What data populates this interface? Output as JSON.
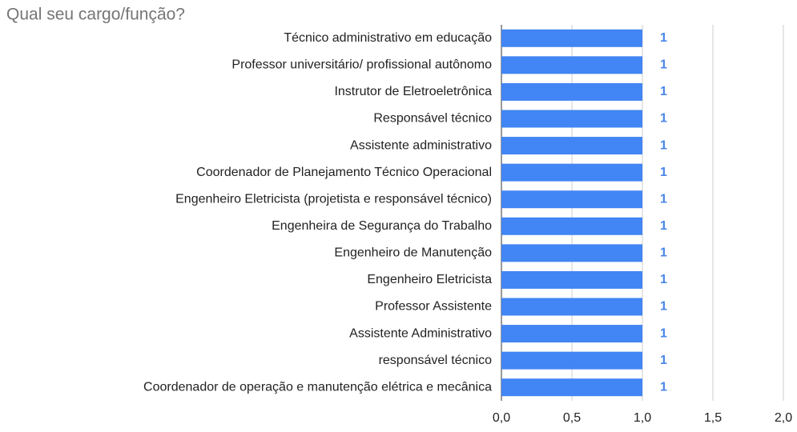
{
  "chart_data": {
    "type": "bar",
    "orientation": "horizontal",
    "title": "Qual seu cargo/função?",
    "categories": [
      "Técnico administrativo em educação",
      "Professor universitário/ profissional autônomo",
      "Instrutor de Eletroeletrônica",
      "Responsável técnico",
      "Assistente administrativo",
      "Coordenador de Planejamento Técnico Operacional",
      "Engenheiro Eletricista (projetista e responsável técnico)",
      "Engenheira de Segurança do Trabalho",
      "Engenheiro de Manutenção",
      "Engenheiro Eletricista",
      "Professor Assistente",
      "Assistente Administrativo",
      "responsável técnico",
      "Coordenador de operação e manutenção elétrica e mecânica"
    ],
    "values": [
      1,
      1,
      1,
      1,
      1,
      1,
      1,
      1,
      1,
      1,
      1,
      1,
      1,
      1
    ],
    "color": "#4285f4",
    "value_label_color": "#4a86e8",
    "xlim": [
      0,
      2
    ],
    "xticks": [
      {
        "value": 0,
        "label": "0,0"
      },
      {
        "value": 0.5,
        "label": "0,5"
      },
      {
        "value": 1,
        "label": "1,0"
      },
      {
        "value": 1.5,
        "label": "1,5"
      },
      {
        "value": 2,
        "label": "2,0"
      }
    ],
    "grid": true
  }
}
